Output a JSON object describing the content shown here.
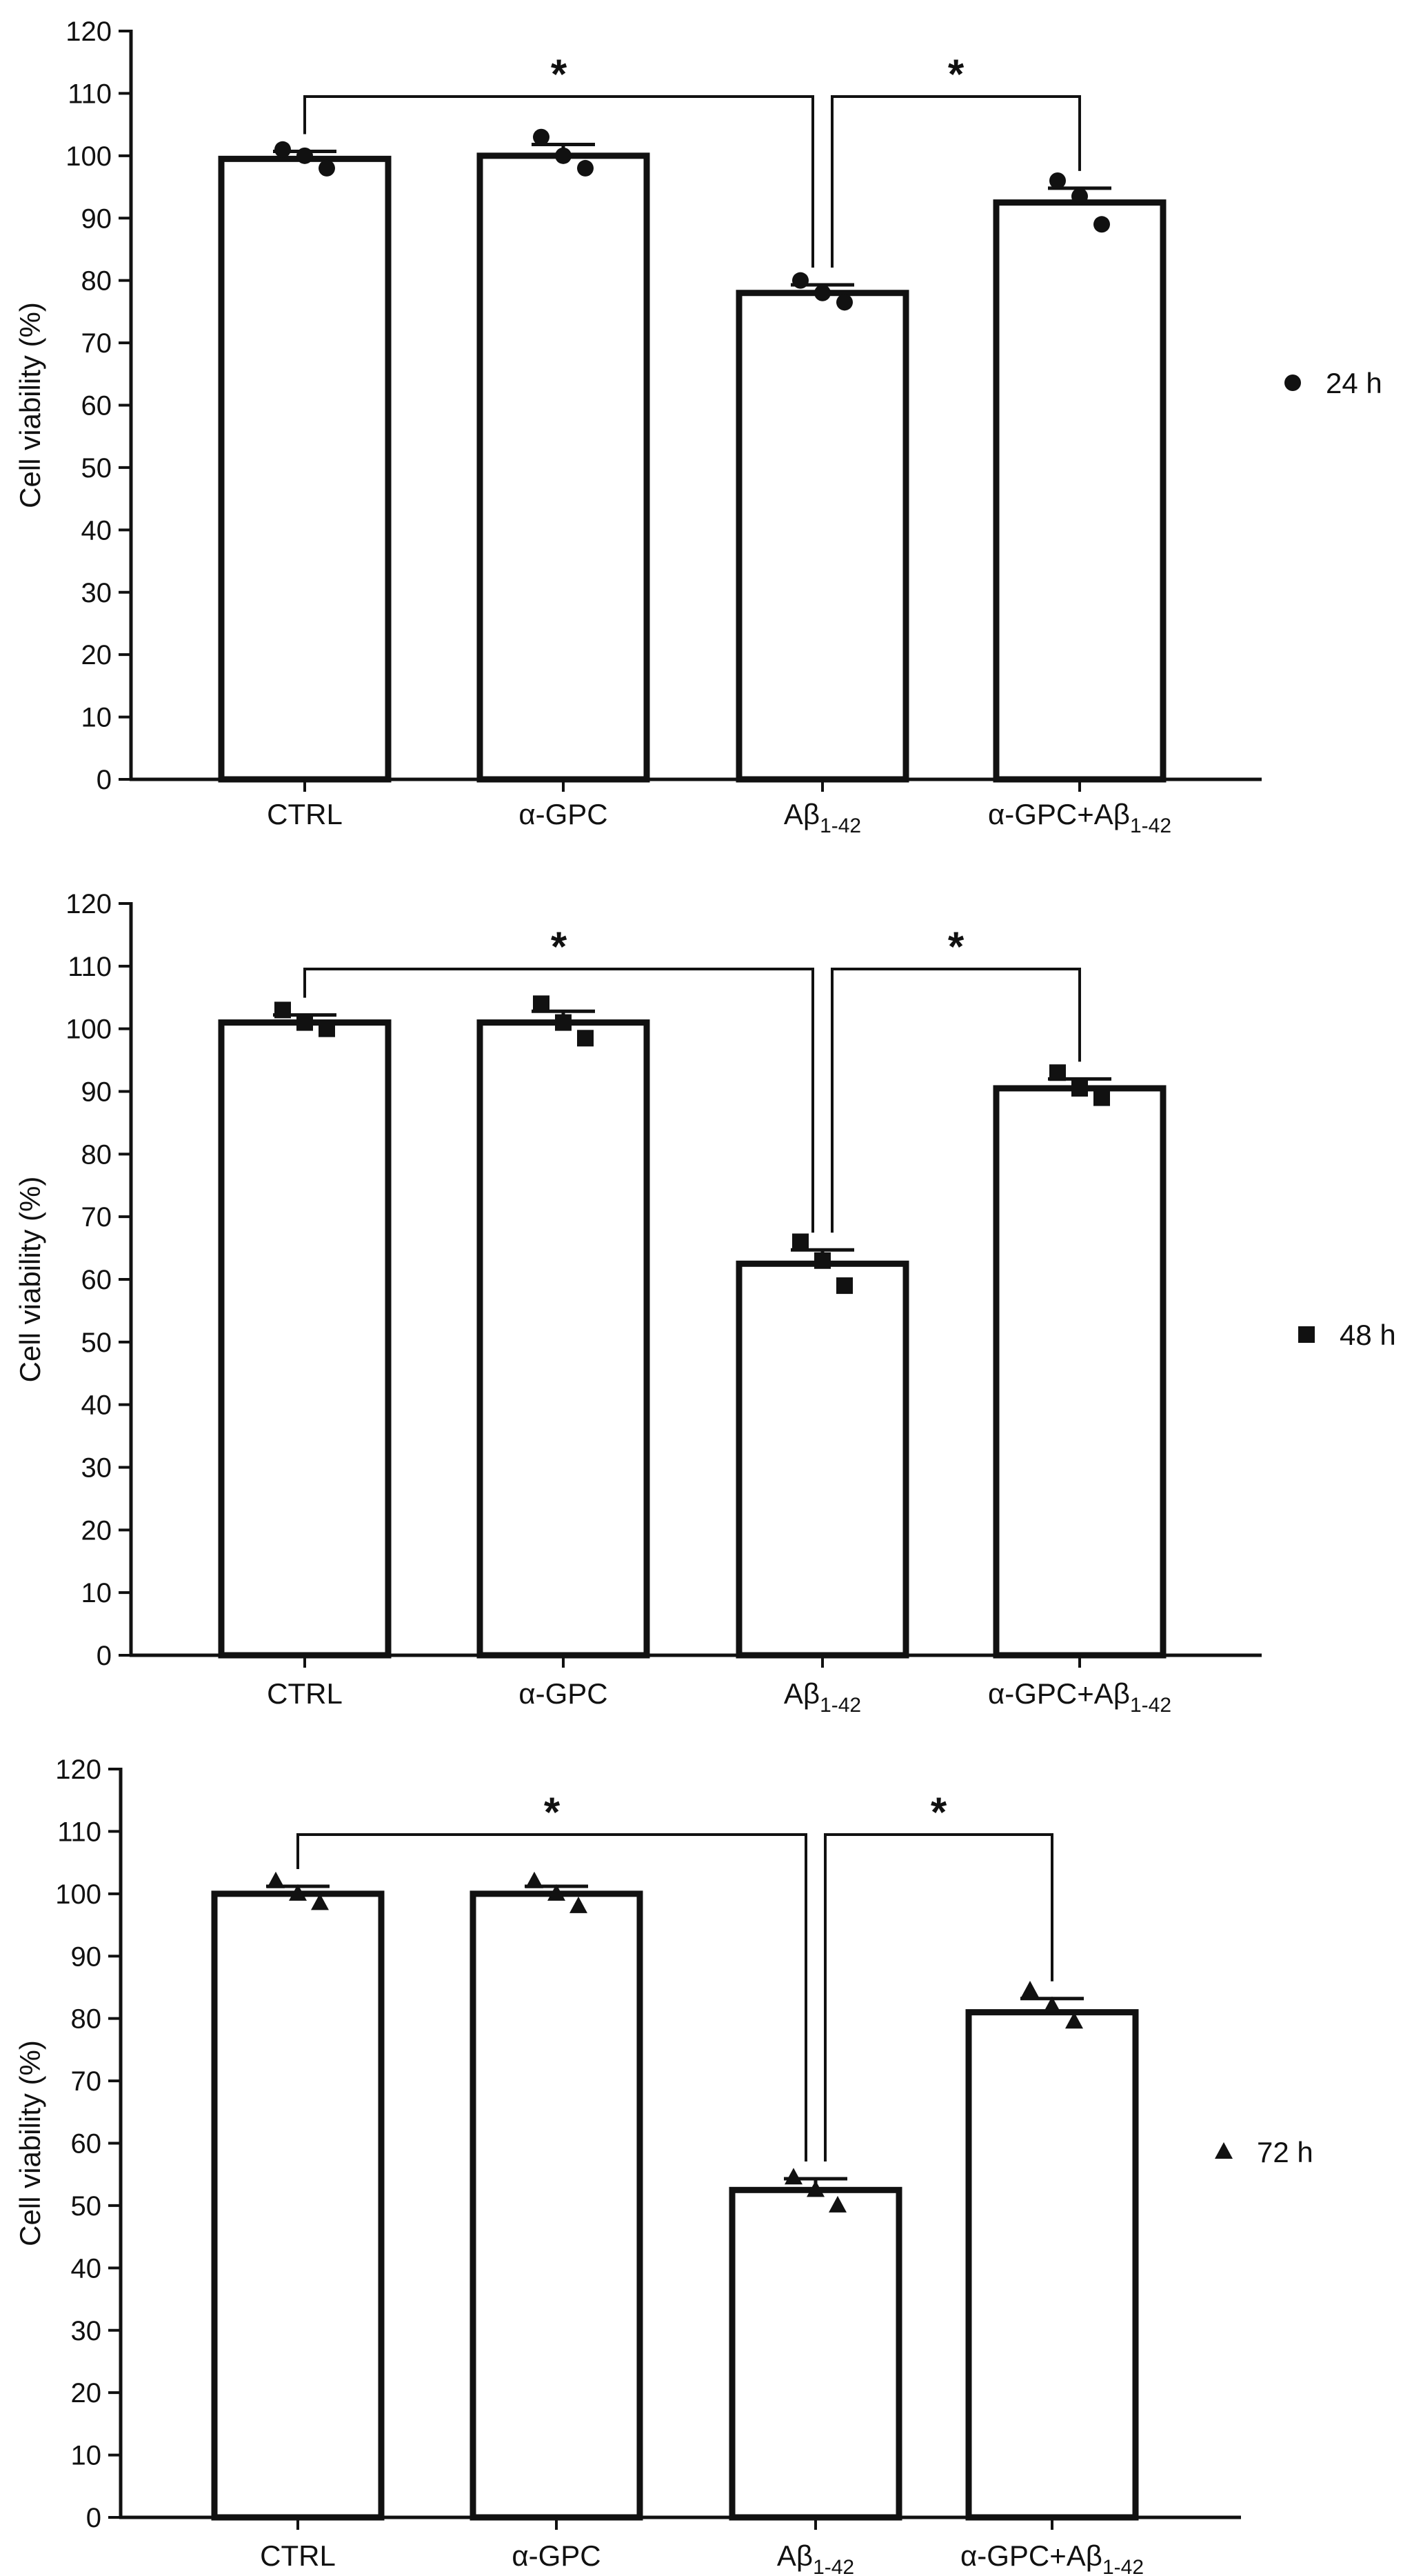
{
  "chart_data": [
    {
      "type": "bar",
      "categories": [
        {
          "main": "CTRL",
          "sub": ""
        },
        {
          "main": "α-GPC",
          "sub": ""
        },
        {
          "main": "Aβ",
          "sub": "1-42"
        },
        {
          "main": "α-GPC+Aβ",
          "sub": "1-42"
        }
      ],
      "values": [
        99.5,
        100,
        78,
        92.5
      ],
      "errors": [
        1.2,
        1.8,
        1.3,
        2.3
      ],
      "points": [
        [
          101,
          100,
          98
        ],
        [
          103,
          100,
          98
        ],
        [
          80,
          78,
          76.5
        ],
        [
          96,
          93.5,
          89
        ]
      ],
      "marker": "circle",
      "legend": "24 h",
      "ylabel": "Cell viability (%)",
      "ylim": [
        0,
        120
      ],
      "yticks": [
        0,
        10,
        20,
        30,
        40,
        50,
        60,
        70,
        80,
        90,
        100,
        110,
        120
      ],
      "brackets": [
        {
          "from": 0,
          "to": 2,
          "label": "*"
        },
        {
          "from": 2,
          "to": 3,
          "label": "*"
        }
      ]
    },
    {
      "type": "bar",
      "categories": [
        {
          "main": "CTRL",
          "sub": ""
        },
        {
          "main": "α-GPC",
          "sub": ""
        },
        {
          "main": "Aβ",
          "sub": "1-42"
        },
        {
          "main": "α-GPC+Aβ",
          "sub": "1-42"
        }
      ],
      "values": [
        101,
        101,
        62.5,
        90.5
      ],
      "errors": [
        1.2,
        1.8,
        2.2,
        1.5
      ],
      "points": [
        [
          103,
          101,
          100
        ],
        [
          104,
          101,
          98.5
        ],
        [
          66,
          63,
          59
        ],
        [
          93,
          90.5,
          89
        ]
      ],
      "marker": "square",
      "legend": "48 h",
      "ylabel": "Cell viability (%)",
      "ylim": [
        0,
        120
      ],
      "yticks": [
        0,
        10,
        20,
        30,
        40,
        50,
        60,
        70,
        80,
        90,
        100,
        110,
        120
      ],
      "brackets": [
        {
          "from": 0,
          "to": 2,
          "label": "*"
        },
        {
          "from": 2,
          "to": 3,
          "label": "*"
        }
      ]
    },
    {
      "type": "bar",
      "categories": [
        {
          "main": "CTRL",
          "sub": ""
        },
        {
          "main": "α-GPC",
          "sub": ""
        },
        {
          "main": "Aβ",
          "sub": "1-42"
        },
        {
          "main": "α-GPC+Aβ",
          "sub": "1-42"
        }
      ],
      "values": [
        100,
        100,
        52.5,
        81
      ],
      "errors": [
        1.2,
        1.2,
        1.8,
        2.2
      ],
      "points": [
        [
          102,
          100,
          98.5
        ],
        [
          102,
          100,
          98
        ],
        [
          54.5,
          52.5,
          50
        ],
        [
          84.5,
          82,
          79.5
        ]
      ],
      "marker": "triangle",
      "legend": "72 h",
      "ylabel": "Cell viability (%)",
      "ylim": [
        0,
        120
      ],
      "yticks": [
        0,
        10,
        20,
        30,
        40,
        50,
        60,
        70,
        80,
        90,
        100,
        110,
        120
      ],
      "brackets": [
        {
          "from": 0,
          "to": 2,
          "label": "*"
        },
        {
          "from": 2,
          "to": 3,
          "label": "*"
        }
      ]
    }
  ]
}
